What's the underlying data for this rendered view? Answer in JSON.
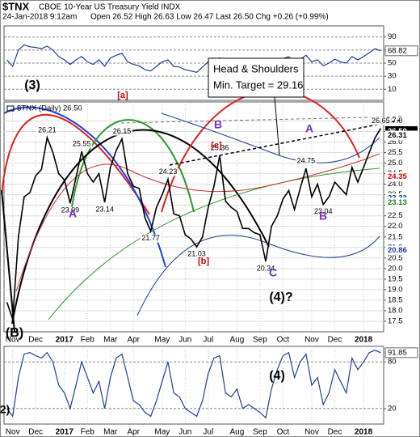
{
  "header": {
    "symbol": "$TNX",
    "name": "CBOE 10-Year US Treasury Yield INDX",
    "date": "24-Jan-2018 9:12am",
    "quote": "Open 26.52 High 26.63 Low 26.47 Last 26.50 Chg +0.26 (+0.99%)"
  },
  "chart_data": [
    {
      "type": "line",
      "color": "#1c3f9a",
      "last_value_tag": true,
      "values": [
        55,
        45,
        70,
        78,
        75,
        74,
        72,
        76,
        70,
        60,
        55,
        48,
        55,
        60,
        52,
        48,
        55,
        45,
        58,
        62,
        65,
        52,
        48,
        46,
        40,
        38,
        45,
        52,
        55,
        45,
        44,
        40,
        38,
        36,
        44,
        52,
        55,
        58,
        46,
        48,
        47,
        42,
        44,
        43,
        42,
        35,
        48,
        52,
        57,
        60,
        50,
        56,
        62,
        52,
        55,
        46,
        50,
        56,
        52,
        50,
        60,
        55,
        60,
        66,
        72,
        68.82
      ],
      "ylim": [
        -7,
        107
      ],
      "yticks": [
        90,
        70,
        50,
        30,
        10
      ],
      "grid": true
    },
    {
      "type": "line",
      "color": "#000000",
      "legend_label": "$TNX (Daily) 26.50",
      "categories": [
        null,
        "Nov",
        null,
        null,
        null,
        "Dec",
        null,
        null,
        null,
        null,
        "2017",
        null,
        null,
        null,
        "Feb",
        null,
        null,
        null,
        "Mar",
        null,
        null,
        null,
        "Apr",
        null,
        null,
        null,
        null,
        "May",
        null,
        null,
        null,
        "Jun",
        null,
        null,
        null,
        "Jul",
        null,
        null,
        null,
        null,
        "Aug",
        null,
        null,
        null,
        "Sep",
        null,
        null,
        null,
        "Oct",
        null,
        null,
        null,
        null,
        "Nov",
        null,
        null,
        null,
        "Dec",
        null,
        null,
        null,
        null,
        "2018",
        null,
        null,
        null
      ],
      "values": [
        18.4,
        17.6,
        21.5,
        23.4,
        23.6,
        24.4,
        24.7,
        26.21,
        25.5,
        24.5,
        24.2,
        23.09,
        24.3,
        25.55,
        24.5,
        24.1,
        24.5,
        23.14,
        24.8,
        25.6,
        26.15,
        24.5,
        23.9,
        23.8,
        22.4,
        21.77,
        22.9,
        23.5,
        24.23,
        22.6,
        22.5,
        21.6,
        21.4,
        21.03,
        21.5,
        22.9,
        23.9,
        25.36,
        23.2,
        22.9,
        22.7,
        21.9,
        21.9,
        21.7,
        21.6,
        20.34,
        22.0,
        22.5,
        23.3,
        23.7,
        22.8,
        23.8,
        24.75,
        23.4,
        24.0,
        23.04,
        23.4,
        24.1,
        23.8,
        23.5,
        24.8,
        24.1,
        24.8,
        25.5,
        26.2,
        26.65
      ],
      "value_labels": [
        null,
        null,
        null,
        null,
        null,
        null,
        null,
        "26.21",
        null,
        null,
        null,
        "23.09",
        null,
        "25.55",
        null,
        null,
        null,
        "23.14",
        null,
        null,
        "26.15",
        null,
        null,
        null,
        null,
        "21.77",
        null,
        null,
        "24.23",
        null,
        null,
        null,
        null,
        "21.03",
        null,
        null,
        null,
        "25.36",
        null,
        null,
        null,
        null,
        null,
        null,
        null,
        "20.34",
        null,
        null,
        null,
        null,
        null,
        null,
        "24.75",
        null,
        null,
        "23.04",
        null,
        null,
        null,
        null,
        null,
        null,
        null,
        null,
        null,
        "26.65"
      ],
      "ylim": [
        17.0,
        27.9
      ],
      "yticks": [
        17.5,
        {
          "value": 18,
          "label": "18.0"
        },
        18.5,
        {
          "value": 19,
          "label": "19.0"
        },
        19.5,
        {
          "value": 20,
          "label": "20.0"
        },
        20.5,
        {
          "value": 21,
          "label": "21.0"
        },
        21.5,
        {
          "value": 22,
          "label": "22.0"
        },
        22.5,
        {
          "value": 23,
          "label": "23.0"
        },
        23.5,
        {
          "value": 24,
          "label": "24.0"
        },
        24.5,
        {
          "value": 25,
          "label": "25.0"
        },
        25.5,
        {
          "value": 26,
          "label": "26.0"
        },
        26.5,
        {
          "value": 27,
          "label": "27.0"
        }
      ],
      "grid": true,
      "price_tags": [
        {
          "value": 26.5,
          "label": "26.50",
          "color": "#000000",
          "boxed": true
        },
        {
          "value": 26.31,
          "color": "#000000"
        },
        {
          "value": 24.35,
          "color": "#cc0000"
        },
        {
          "value": 23.33,
          "color": "#1c3f9a"
        },
        {
          "value": 23.13,
          "color": "#1a7a1a"
        },
        {
          "value": 20.86,
          "color": "#1c3f9a"
        }
      ],
      "callout": [
        "Head & Shoulders",
        "Min. Target = 29.16"
      ],
      "annotations": [
        {
          "text": "(3)",
          "color": "#000000"
        },
        {
          "text": "[a]",
          "color": "#cc0000"
        },
        {
          "text": "B",
          "color": "#7a2fc4"
        },
        {
          "text": "[c]",
          "color": "#cc0000"
        },
        {
          "text": "A",
          "color": "#7a2fc4"
        },
        {
          "text": "A",
          "color": "#7a2fc4"
        },
        {
          "text": "[b]",
          "color": "#cc0000"
        },
        {
          "text": "B",
          "color": "#7a2fc4"
        },
        {
          "text": "C",
          "color": "#7a2fc4"
        },
        {
          "text": "(4)?",
          "color": "#000000"
        },
        {
          "text": "(B)",
          "color": "#000000"
        }
      ]
    },
    {
      "type": "line",
      "color": "#1c3f9a",
      "last_value_tag": true,
      "categories": [
        null,
        "Nov",
        null,
        null,
        null,
        "Dec",
        null,
        null,
        null,
        null,
        "2017",
        null,
        null,
        null,
        "Feb",
        null,
        null,
        null,
        "Mar",
        null,
        null,
        null,
        "Apr",
        null,
        null,
        null,
        null,
        "May",
        null,
        null,
        null,
        "Jun",
        null,
        null,
        null,
        "Jul",
        null,
        null,
        null,
        null,
        "Aug",
        null,
        null,
        null,
        "Sep",
        null,
        null,
        null,
        "Oct",
        null,
        null,
        null,
        null,
        "Nov",
        null,
        null,
        null,
        "Dec",
        null,
        null,
        null,
        null,
        "2018",
        null,
        null,
        null
      ],
      "values": [
        20,
        10,
        60,
        90,
        92,
        88,
        85,
        92,
        80,
        50,
        40,
        20,
        50,
        80,
        60,
        40,
        55,
        20,
        60,
        85,
        90,
        60,
        30,
        25,
        15,
        10,
        30,
        55,
        80,
        40,
        35,
        20,
        15,
        10,
        30,
        65,
        85,
        88,
        40,
        35,
        45,
        20,
        25,
        20,
        15,
        8,
        45,
        70,
        88,
        92,
        60,
        80,
        90,
        50,
        60,
        25,
        40,
        70,
        55,
        40,
        85,
        70,
        80,
        92,
        95,
        91.85
      ],
      "ylim": [
        0,
        100
      ],
      "yticks": [
        80,
        20
      ],
      "grid": true,
      "annotations": [
        {
          "text": "(4)",
          "color": "#000000"
        },
        {
          "text": "2)",
          "color": "#000000"
        }
      ]
    }
  ]
}
